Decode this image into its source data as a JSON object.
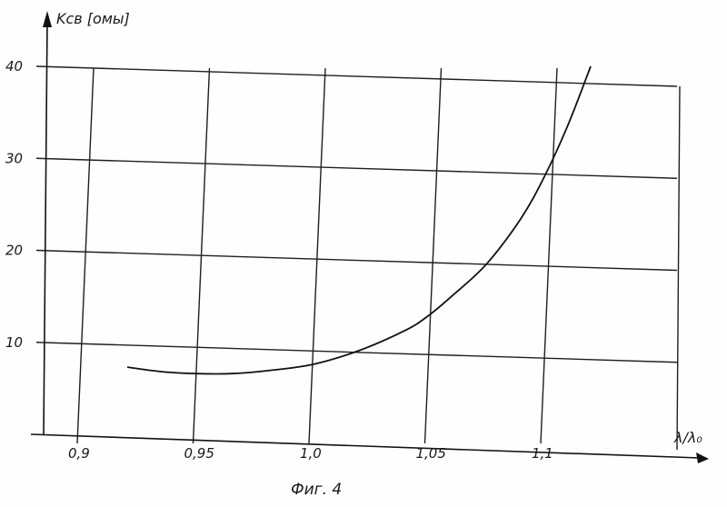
{
  "chart_data": {
    "type": "line",
    "title": "",
    "xlabel": "λ/λ₀",
    "ylabel": "Kсв [омы]",
    "xlim": [
      0.88,
      1.16
    ],
    "ylim": [
      0,
      40
    ],
    "x_ticks": [
      0.9,
      0.95,
      1.0,
      1.05,
      1.1
    ],
    "x_tick_labels": [
      "0,9",
      "0,95",
      "1,0",
      "1,05",
      "1,1"
    ],
    "y_ticks": [
      10,
      20,
      30,
      40
    ],
    "y_tick_labels": [
      "10",
      "20",
      "30",
      "40"
    ],
    "grid": true,
    "series": [
      {
        "x": [
          0.92,
          0.935,
          0.95,
          0.965,
          0.98,
          1.0,
          1.02,
          1.04,
          1.05,
          1.06,
          1.075,
          1.09,
          1.1,
          1.11,
          1.12
        ],
        "y": [
          7.3,
          6.8,
          6.6,
          6.6,
          6.9,
          7.6,
          9.1,
          11.3,
          12.9,
          15.0,
          18.5,
          23.5,
          28.0,
          33.5,
          40.0
        ]
      }
    ],
    "annotation": "Фиг. 4"
  }
}
